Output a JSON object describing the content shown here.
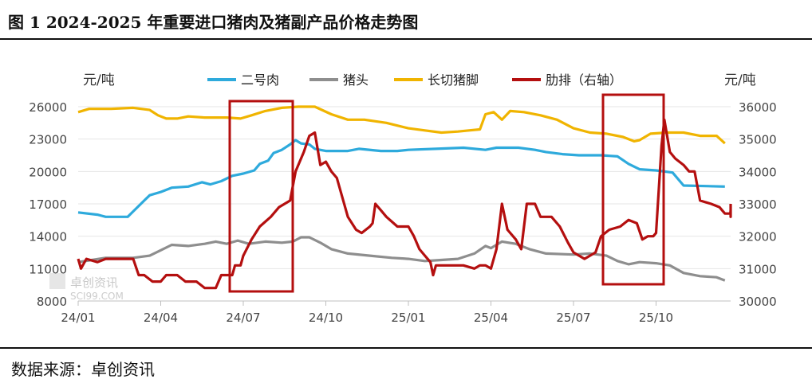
{
  "title": "图 1 2024-2025 年重要进口猪肉及猪副产品价格走势图",
  "source": "数据来源：卓创资讯",
  "watermark": {
    "name": "卓创资讯",
    "site": "SCI99.COM"
  },
  "chart_data": {
    "type": "line",
    "left_unit": "元/吨",
    "right_unit": "元/吨",
    "left_axis": {
      "ylim": [
        8000,
        26000
      ],
      "ticks": [
        8000,
        11000,
        14000,
        17000,
        20000,
        23000,
        26000
      ],
      "tick_labels": [
        "8000",
        "11000",
        "14000",
        "17000",
        "20000",
        "23000",
        "26000"
      ]
    },
    "right_axis": {
      "ylim": [
        30000,
        36000
      ],
      "ticks": [
        30000,
        31000,
        32000,
        33000,
        34000,
        35000,
        36000
      ],
      "tick_labels": [
        "30000",
        "31000",
        "32000",
        "33000",
        "34000",
        "35000",
        "36000"
      ]
    },
    "x_axis": {
      "range_months": [
        0,
        23.5
      ],
      "ticks": [
        0,
        3,
        6,
        9,
        12,
        15,
        18,
        21
      ],
      "tick_labels": [
        "24/01",
        "24/04",
        "24/07",
        "24/10",
        "25/01",
        "25/04",
        "25/07",
        "25/10"
      ]
    },
    "legend_position": "top",
    "series": [
      {
        "name": "二号肉",
        "color": "#2eaadc",
        "axis": "left",
        "points": [
          [
            0,
            16200
          ],
          [
            0.7,
            16000
          ],
          [
            1.0,
            15800
          ],
          [
            1.8,
            15800
          ],
          [
            2.0,
            16300
          ],
          [
            2.4,
            17300
          ],
          [
            2.6,
            17800
          ],
          [
            3.0,
            18100
          ],
          [
            3.4,
            18500
          ],
          [
            4.0,
            18600
          ],
          [
            4.5,
            19000
          ],
          [
            4.8,
            18800
          ],
          [
            5.2,
            19100
          ],
          [
            5.6,
            19600
          ],
          [
            6.0,
            19800
          ],
          [
            6.4,
            20100
          ],
          [
            6.6,
            20700
          ],
          [
            6.9,
            21000
          ],
          [
            7.1,
            21700
          ],
          [
            7.4,
            22000
          ],
          [
            7.7,
            22500
          ],
          [
            7.9,
            22900
          ],
          [
            8.1,
            22600
          ],
          [
            8.4,
            22500
          ],
          [
            8.6,
            22100
          ],
          [
            9.0,
            21900
          ],
          [
            9.8,
            21900
          ],
          [
            10.2,
            22100
          ],
          [
            11.0,
            21900
          ],
          [
            11.6,
            21900
          ],
          [
            12.0,
            22000
          ],
          [
            13.0,
            22100
          ],
          [
            14.0,
            22200
          ],
          [
            14.8,
            22000
          ],
          [
            15.2,
            22200
          ],
          [
            16.0,
            22200
          ],
          [
            16.6,
            22000
          ],
          [
            17.0,
            21800
          ],
          [
            17.6,
            21600
          ],
          [
            18.2,
            21500
          ],
          [
            19.0,
            21500
          ],
          [
            19.6,
            21400
          ],
          [
            20.0,
            20700
          ],
          [
            20.4,
            20200
          ],
          [
            21.0,
            20100
          ],
          [
            21.6,
            19900
          ],
          [
            22.0,
            18700
          ],
          [
            23.5,
            18600
          ]
        ]
      },
      {
        "name": "猪头",
        "color": "#8e8e8e",
        "axis": "left",
        "points": [
          [
            0,
            11600
          ],
          [
            0.5,
            11800
          ],
          [
            1.0,
            12000
          ],
          [
            2.0,
            12000
          ],
          [
            2.6,
            12200
          ],
          [
            3.0,
            12700
          ],
          [
            3.4,
            13200
          ],
          [
            4.0,
            13100
          ],
          [
            4.6,
            13300
          ],
          [
            5.0,
            13500
          ],
          [
            5.4,
            13300
          ],
          [
            5.8,
            13600
          ],
          [
            6.2,
            13300
          ],
          [
            6.8,
            13500
          ],
          [
            7.4,
            13400
          ],
          [
            7.8,
            13500
          ],
          [
            8.1,
            13900
          ],
          [
            8.4,
            13900
          ],
          [
            8.8,
            13400
          ],
          [
            9.2,
            12800
          ],
          [
            9.8,
            12400
          ],
          [
            10.6,
            12200
          ],
          [
            11.4,
            12000
          ],
          [
            12.0,
            11900
          ],
          [
            12.6,
            11700
          ],
          [
            13.2,
            11800
          ],
          [
            13.8,
            11900
          ],
          [
            14.4,
            12400
          ],
          [
            14.8,
            13100
          ],
          [
            15.0,
            12900
          ],
          [
            15.4,
            13500
          ],
          [
            15.9,
            13300
          ],
          [
            16.4,
            12800
          ],
          [
            17.0,
            12400
          ],
          [
            18.0,
            12300
          ],
          [
            18.6,
            12400
          ],
          [
            19.2,
            12200
          ],
          [
            19.6,
            11700
          ],
          [
            20.0,
            11400
          ],
          [
            20.4,
            11600
          ],
          [
            21.0,
            11500
          ],
          [
            21.5,
            11300
          ],
          [
            22.0,
            10600
          ],
          [
            22.6,
            10300
          ],
          [
            23.2,
            10200
          ],
          [
            23.5,
            9900
          ]
        ]
      },
      {
        "name": "长切猪脚",
        "color": "#f0b400",
        "axis": "left",
        "points": [
          [
            0,
            25500
          ],
          [
            0.4,
            25800
          ],
          [
            1.2,
            25800
          ],
          [
            2.0,
            25900
          ],
          [
            2.6,
            25700
          ],
          [
            2.9,
            25200
          ],
          [
            3.2,
            24900
          ],
          [
            3.6,
            24900
          ],
          [
            4.0,
            25100
          ],
          [
            4.6,
            25000
          ],
          [
            5.4,
            25000
          ],
          [
            5.9,
            24900
          ],
          [
            6.3,
            25200
          ],
          [
            6.8,
            25600
          ],
          [
            7.4,
            25900
          ],
          [
            8.0,
            26000
          ],
          [
            8.6,
            26000
          ],
          [
            9.2,
            25300
          ],
          [
            9.8,
            24800
          ],
          [
            10.4,
            24800
          ],
          [
            11.2,
            24500
          ],
          [
            12.0,
            24000
          ],
          [
            12.6,
            23800
          ],
          [
            13.2,
            23600
          ],
          [
            13.8,
            23700
          ],
          [
            14.2,
            23800
          ],
          [
            14.6,
            23900
          ],
          [
            14.8,
            25300
          ],
          [
            15.1,
            25500
          ],
          [
            15.4,
            24800
          ],
          [
            15.7,
            25600
          ],
          [
            16.2,
            25500
          ],
          [
            16.8,
            25200
          ],
          [
            17.4,
            24800
          ],
          [
            18.0,
            24000
          ],
          [
            18.6,
            23600
          ],
          [
            19.2,
            23500
          ],
          [
            19.8,
            23200
          ],
          [
            20.2,
            22800
          ],
          [
            20.4,
            22900
          ],
          [
            20.8,
            23500
          ],
          [
            21.4,
            23600
          ],
          [
            22.0,
            23600
          ],
          [
            22.6,
            23300
          ],
          [
            23.2,
            23300
          ],
          [
            23.5,
            22600
          ]
        ]
      },
      {
        "name": "肋排（右轴）",
        "color": "#b40f0f",
        "axis": "right",
        "points": [
          [
            0,
            31300
          ],
          [
            0.1,
            31000
          ],
          [
            0.3,
            31300
          ],
          [
            0.7,
            31200
          ],
          [
            1.0,
            31300
          ],
          [
            1.6,
            31300
          ],
          [
            2.0,
            31300
          ],
          [
            2.2,
            30800
          ],
          [
            2.4,
            30800
          ],
          [
            2.7,
            30600
          ],
          [
            3.0,
            30600
          ],
          [
            3.2,
            30800
          ],
          [
            3.6,
            30800
          ],
          [
            3.9,
            30600
          ],
          [
            4.3,
            30600
          ],
          [
            4.6,
            30400
          ],
          [
            5.0,
            30400
          ],
          [
            5.2,
            30800
          ],
          [
            5.6,
            30800
          ],
          [
            5.7,
            31100
          ],
          [
            5.9,
            31100
          ],
          [
            6.0,
            31400
          ],
          [
            6.3,
            31900
          ],
          [
            6.6,
            32300
          ],
          [
            7.0,
            32600
          ],
          [
            7.3,
            32900
          ],
          [
            7.7,
            33100
          ],
          [
            7.9,
            34000
          ],
          [
            8.2,
            34600
          ],
          [
            8.4,
            35100
          ],
          [
            8.6,
            35200
          ],
          [
            8.8,
            34200
          ],
          [
            9.0,
            34300
          ],
          [
            9.2,
            34000
          ],
          [
            9.4,
            33800
          ],
          [
            9.6,
            33200
          ],
          [
            9.8,
            32600
          ],
          [
            10.1,
            32200
          ],
          [
            10.3,
            32100
          ],
          [
            10.6,
            32300
          ],
          [
            10.7,
            32400
          ],
          [
            10.8,
            33000
          ],
          [
            11.0,
            32800
          ],
          [
            11.2,
            32600
          ],
          [
            11.6,
            32300
          ],
          [
            12.0,
            32300
          ],
          [
            12.2,
            32000
          ],
          [
            12.4,
            31600
          ],
          [
            12.6,
            31400
          ],
          [
            12.8,
            31200
          ],
          [
            12.9,
            30800
          ],
          [
            13.0,
            31100
          ],
          [
            13.6,
            31100
          ],
          [
            14.0,
            31100
          ],
          [
            14.4,
            31000
          ],
          [
            14.6,
            31100
          ],
          [
            14.8,
            31100
          ],
          [
            15.0,
            31000
          ],
          [
            15.2,
            31600
          ],
          [
            15.4,
            33000
          ],
          [
            15.6,
            32200
          ],
          [
            15.9,
            31900
          ],
          [
            16.1,
            31600
          ],
          [
            16.3,
            33000
          ],
          [
            16.6,
            33000
          ],
          [
            16.8,
            32600
          ],
          [
            17.2,
            32600
          ],
          [
            17.5,
            32300
          ],
          [
            17.8,
            31800
          ],
          [
            18.0,
            31500
          ],
          [
            18.4,
            31300
          ],
          [
            18.8,
            31500
          ],
          [
            19.0,
            32000
          ],
          [
            19.3,
            32200
          ],
          [
            19.7,
            32300
          ],
          [
            20.0,
            32500
          ],
          [
            20.3,
            32400
          ],
          [
            20.5,
            31900
          ],
          [
            20.7,
            32000
          ],
          [
            20.9,
            32000
          ],
          [
            21.0,
            32100
          ],
          [
            21.2,
            34800
          ],
          [
            21.3,
            35600
          ],
          [
            21.5,
            34600
          ],
          [
            21.7,
            34400
          ],
          [
            22.0,
            34200
          ],
          [
            22.2,
            34000
          ],
          [
            22.4,
            34000
          ],
          [
            22.6,
            33100
          ],
          [
            23.0,
            33000
          ],
          [
            23.3,
            32900
          ],
          [
            23.5,
            32700
          ],
          [
            23.7,
            32700
          ],
          [
            23.9,
            32800
          ],
          [
            24.0,
            32600
          ],
          [
            24.2,
            33000
          ],
          [
            24.5,
            33000
          ]
        ]
      }
    ]
  }
}
